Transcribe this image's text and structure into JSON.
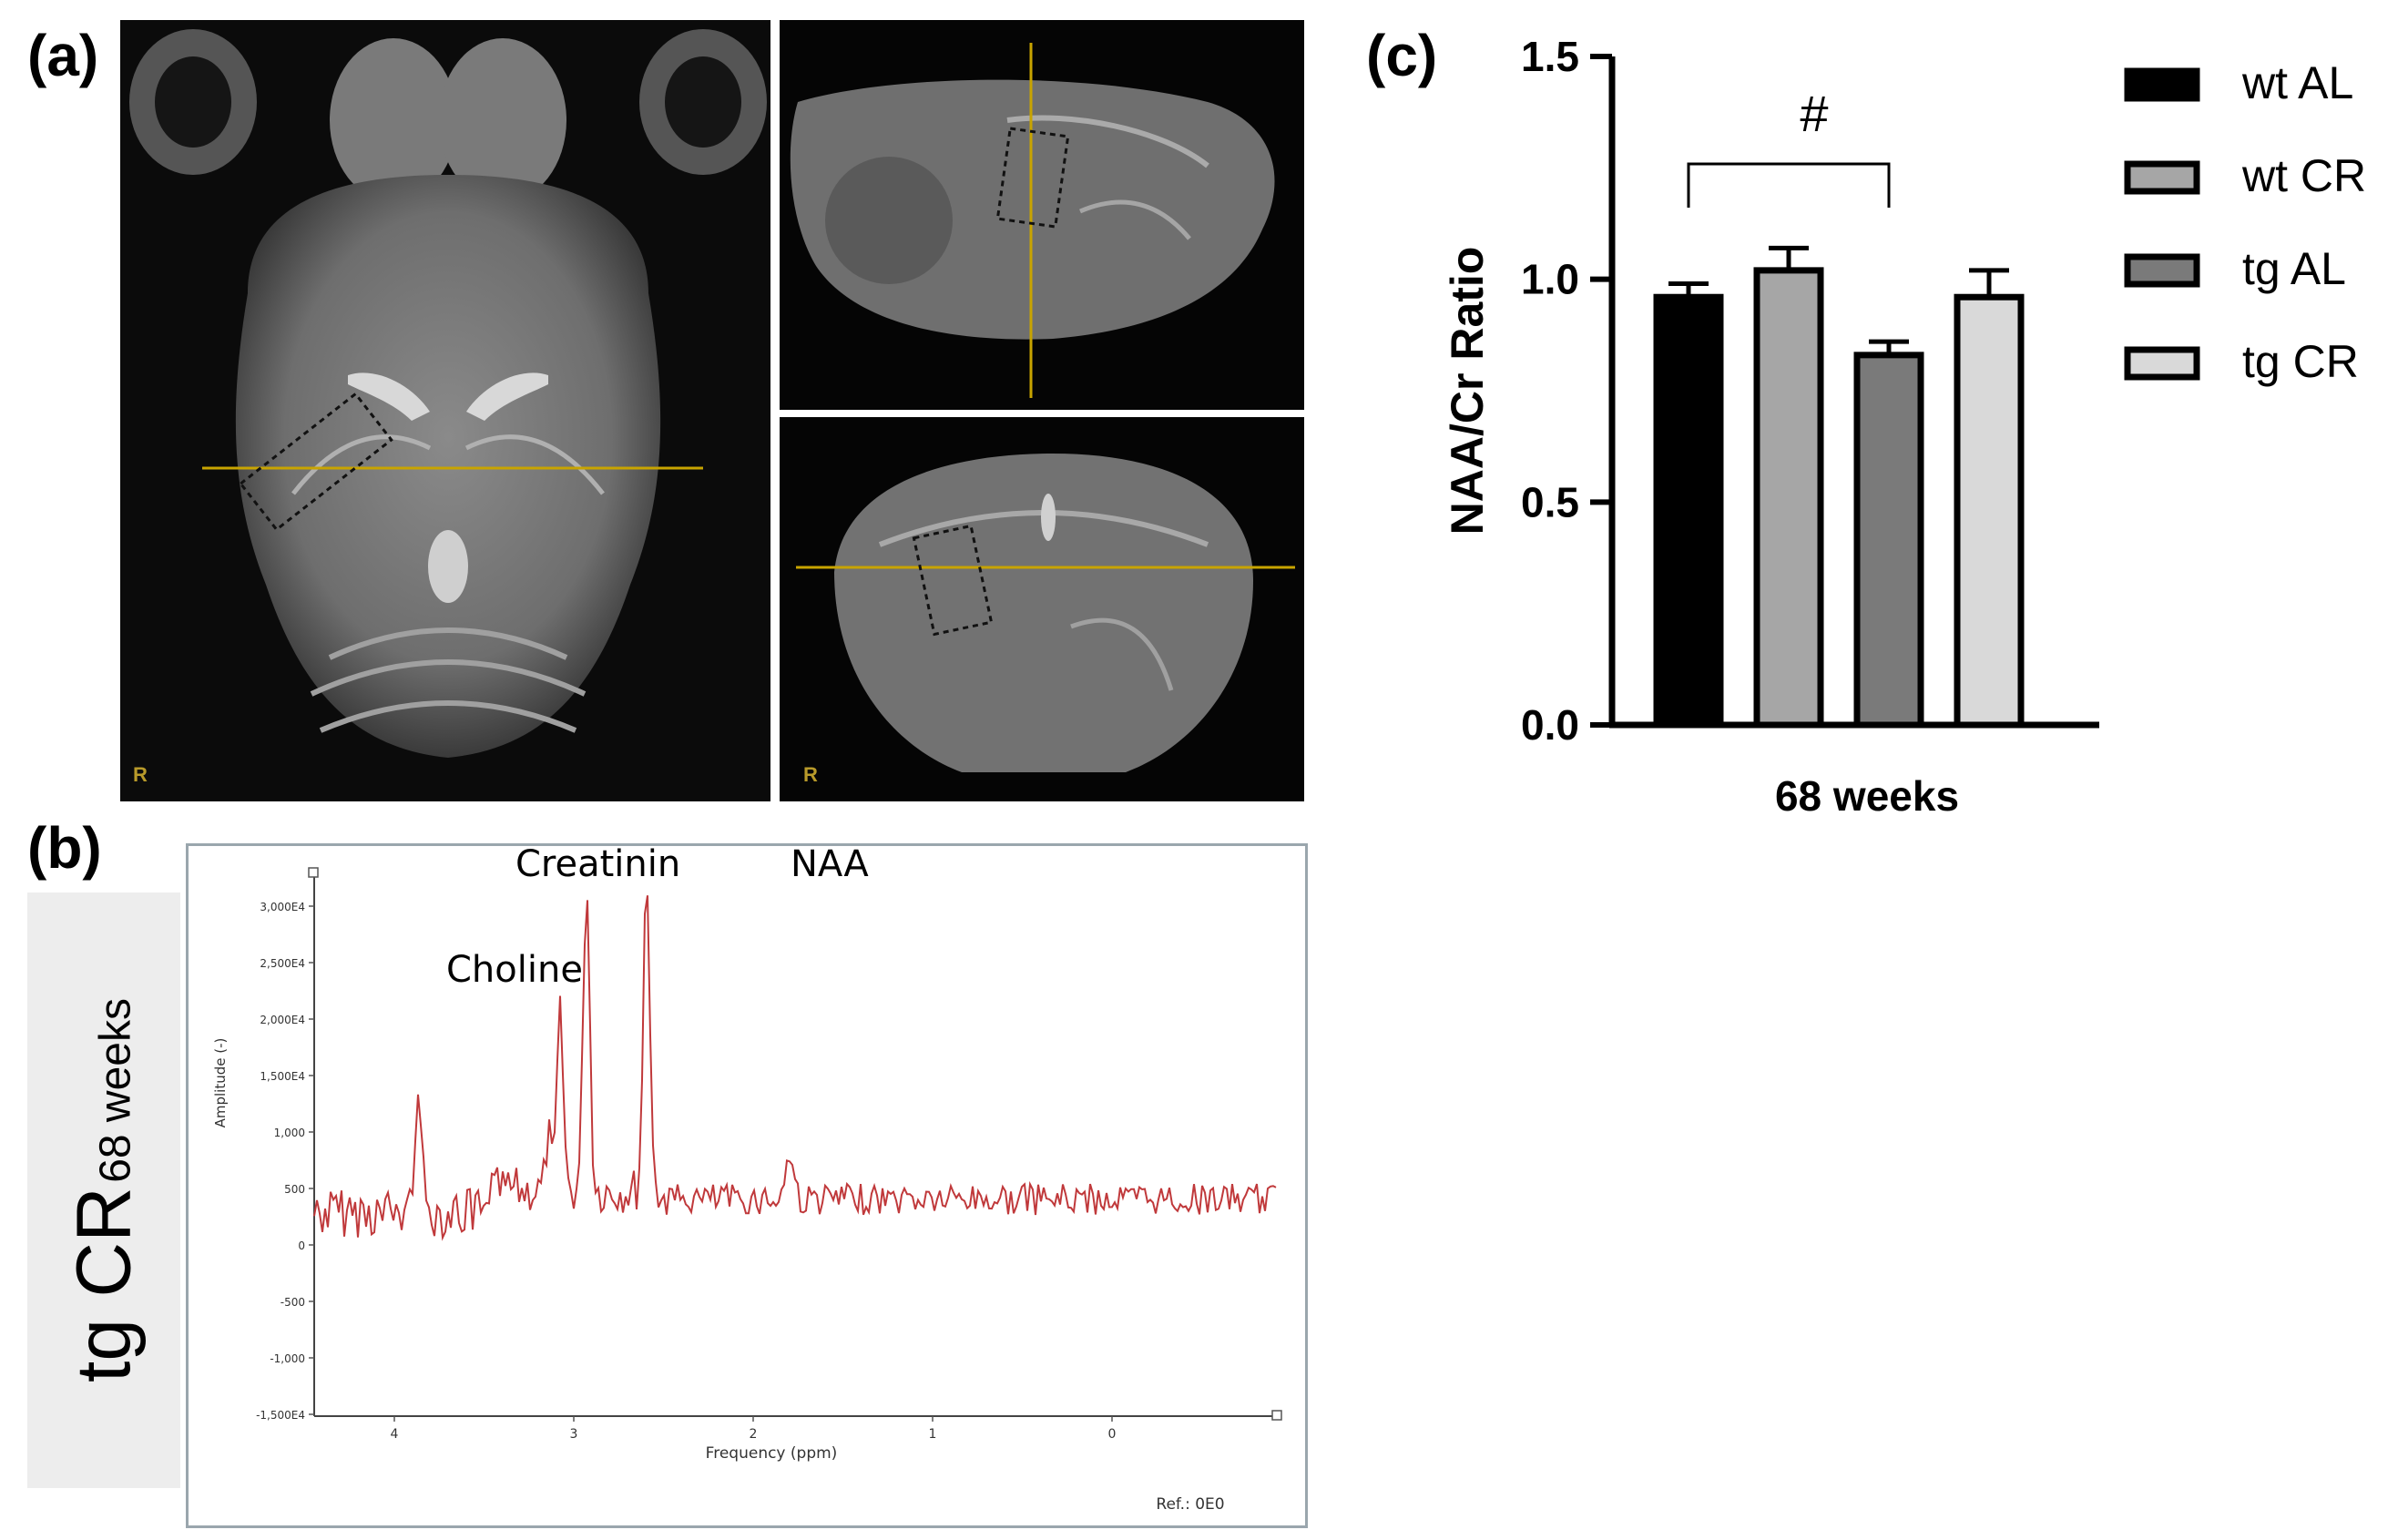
{
  "panels": {
    "a": "(a)",
    "b": "(b)",
    "c": "(c)"
  },
  "mri": {
    "orientation_label": "R"
  },
  "sample_label": {
    "group": "tg CR",
    "age": "68 weeks"
  },
  "spectrum": {
    "peaks": [
      "Choline",
      "Creatinin",
      "NAA"
    ],
    "xlabel": "Frequency (ppm)",
    "ylabel": "Amplitude (-)",
    "xticks": [
      "4",
      "3",
      "2",
      "1",
      "0"
    ],
    "yticks": [
      "3,000E4",
      "2,500E4",
      "2,000E4",
      "1,500E4",
      "1,000",
      "500",
      "0",
      "-500",
      "-1,000",
      "-1,500E4"
    ],
    "ref_text": "Ref.: 0E0",
    "line_color": "#c0393b"
  },
  "chart_data": {
    "type": "bar",
    "title": "",
    "xlabel": "68 weeks",
    "ylabel": "NAA/Cr Ratio",
    "ylim": [
      0,
      1.5
    ],
    "yticks": [
      "0.0",
      "0.5",
      "1.0",
      "1.5"
    ],
    "categories": [
      "wt AL",
      "wt CR",
      "tg AL",
      "tg CR"
    ],
    "values": [
      0.96,
      1.02,
      0.83,
      0.96
    ],
    "errors": [
      0.03,
      0.05,
      0.03,
      0.06
    ],
    "colors": [
      "#000000",
      "#a6a6a6",
      "#7a7a7a",
      "#d9d9d9"
    ],
    "legend": [
      "wt AL",
      "wt CR",
      "tg AL",
      "tg CR"
    ],
    "legend_position": "right",
    "significance": {
      "between": [
        "wt AL",
        "tg AL"
      ],
      "symbol": "#"
    }
  }
}
